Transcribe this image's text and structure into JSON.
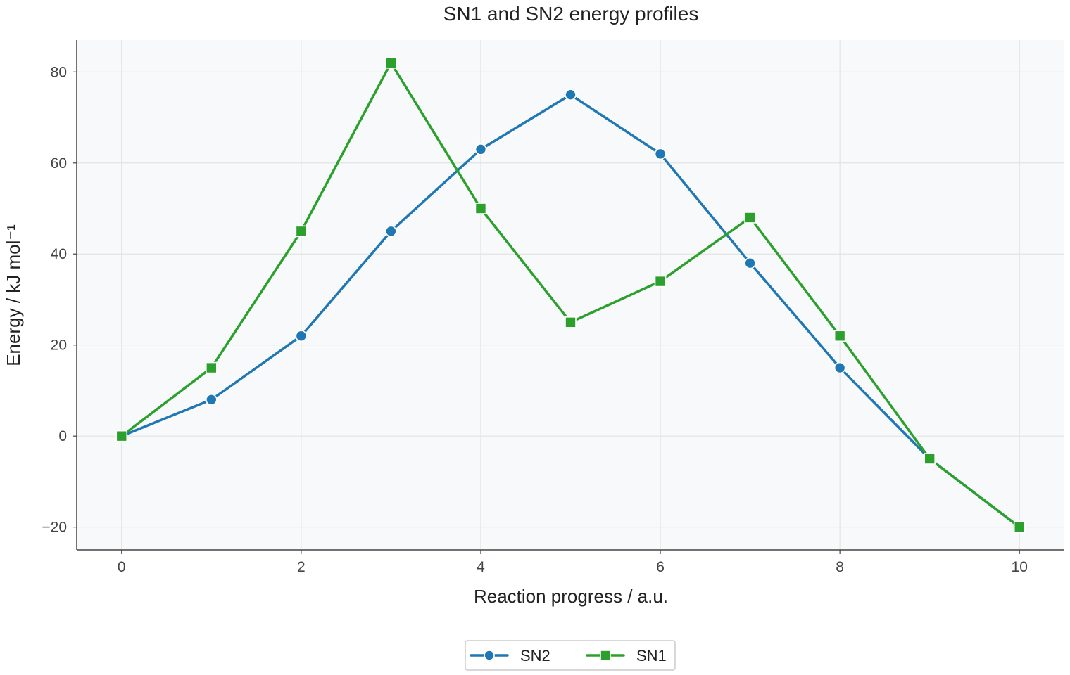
{
  "chart_data": {
    "type": "line",
    "title": "SN1 and SN2 energy profiles",
    "xlabel": "Reaction progress / a.u.",
    "ylabel": "Energy / kJ mol⁻¹",
    "xlim": [
      -0.5,
      10.5
    ],
    "ylim": [
      -25,
      87
    ],
    "xticks": [
      0,
      2,
      4,
      6,
      8,
      10
    ],
    "yticks": [
      -20,
      0,
      20,
      40,
      60,
      80
    ],
    "ytick_labels": [
      "−20",
      "0",
      "20",
      "40",
      "60",
      "80"
    ],
    "grid": true,
    "legend_position": "bottom-center",
    "x": [
      0,
      1,
      2,
      3,
      4,
      5,
      6,
      7,
      8,
      9,
      10
    ],
    "series": [
      {
        "name": "SN2",
        "marker": "circle",
        "color": "#1f77b4",
        "values": [
          0,
          8,
          22,
          45,
          63,
          75,
          62,
          38,
          15,
          -5,
          -20
        ]
      },
      {
        "name": "SN1",
        "marker": "square",
        "color": "#2ca02c",
        "values": [
          0,
          15,
          45,
          82,
          50,
          25,
          34,
          48,
          22,
          -5,
          -20
        ]
      }
    ]
  }
}
